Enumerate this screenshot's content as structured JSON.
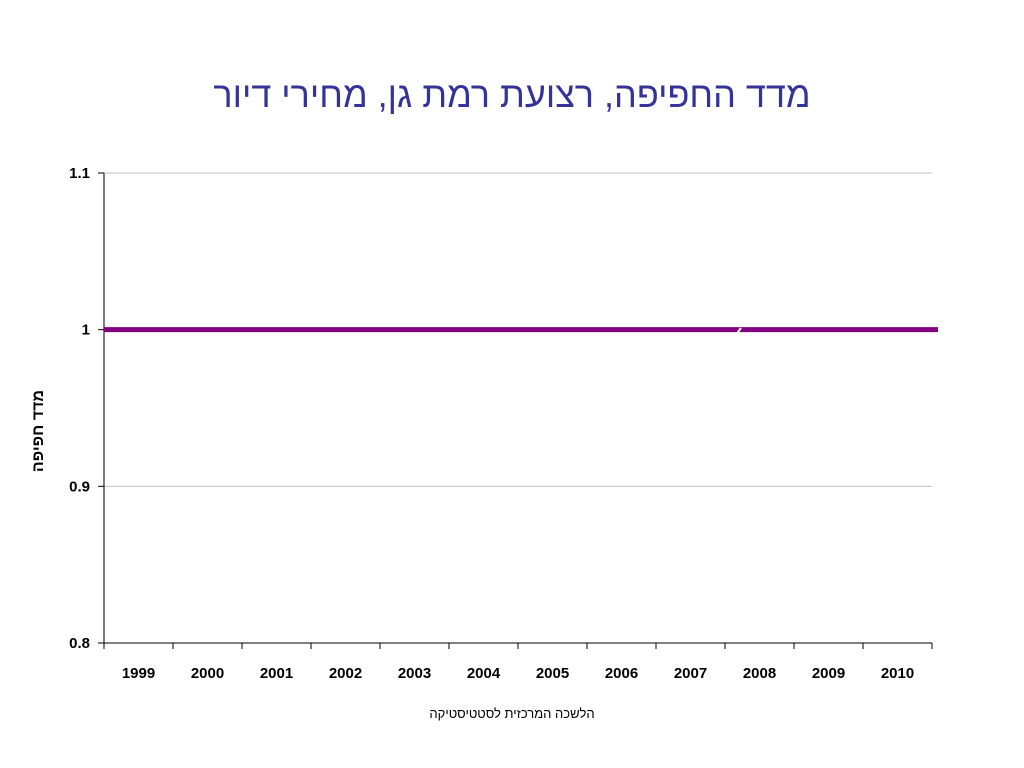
{
  "slide": {
    "title": "מדד החפיפה, רצועת רמת גן, מחירי דיור",
    "source": "הלשכה המרכזית לסטטיסטיקה"
  },
  "chart_data": {
    "type": "line",
    "title": "מדד החפיפה, רצועת רמת גן, מחירי דיור",
    "ylabel": "מדד חפיפה",
    "xlabel": "",
    "categories": [
      "1999",
      "2000",
      "2001",
      "2002",
      "2003",
      "2004",
      "2005",
      "2006",
      "2007",
      "2008",
      "2009",
      "2010"
    ],
    "yticks": [
      "0.8",
      "0.9",
      "1",
      "1.1"
    ],
    "ylim": [
      0.8,
      1.1
    ],
    "grid": true,
    "series": [
      {
        "values": [
          1,
          1,
          1,
          1,
          1,
          1,
          1,
          1,
          1,
          1,
          1,
          1
        ],
        "color": "#800080"
      }
    ],
    "colors": {
      "axis": "#000000",
      "grid": "#c0c0c0"
    }
  }
}
